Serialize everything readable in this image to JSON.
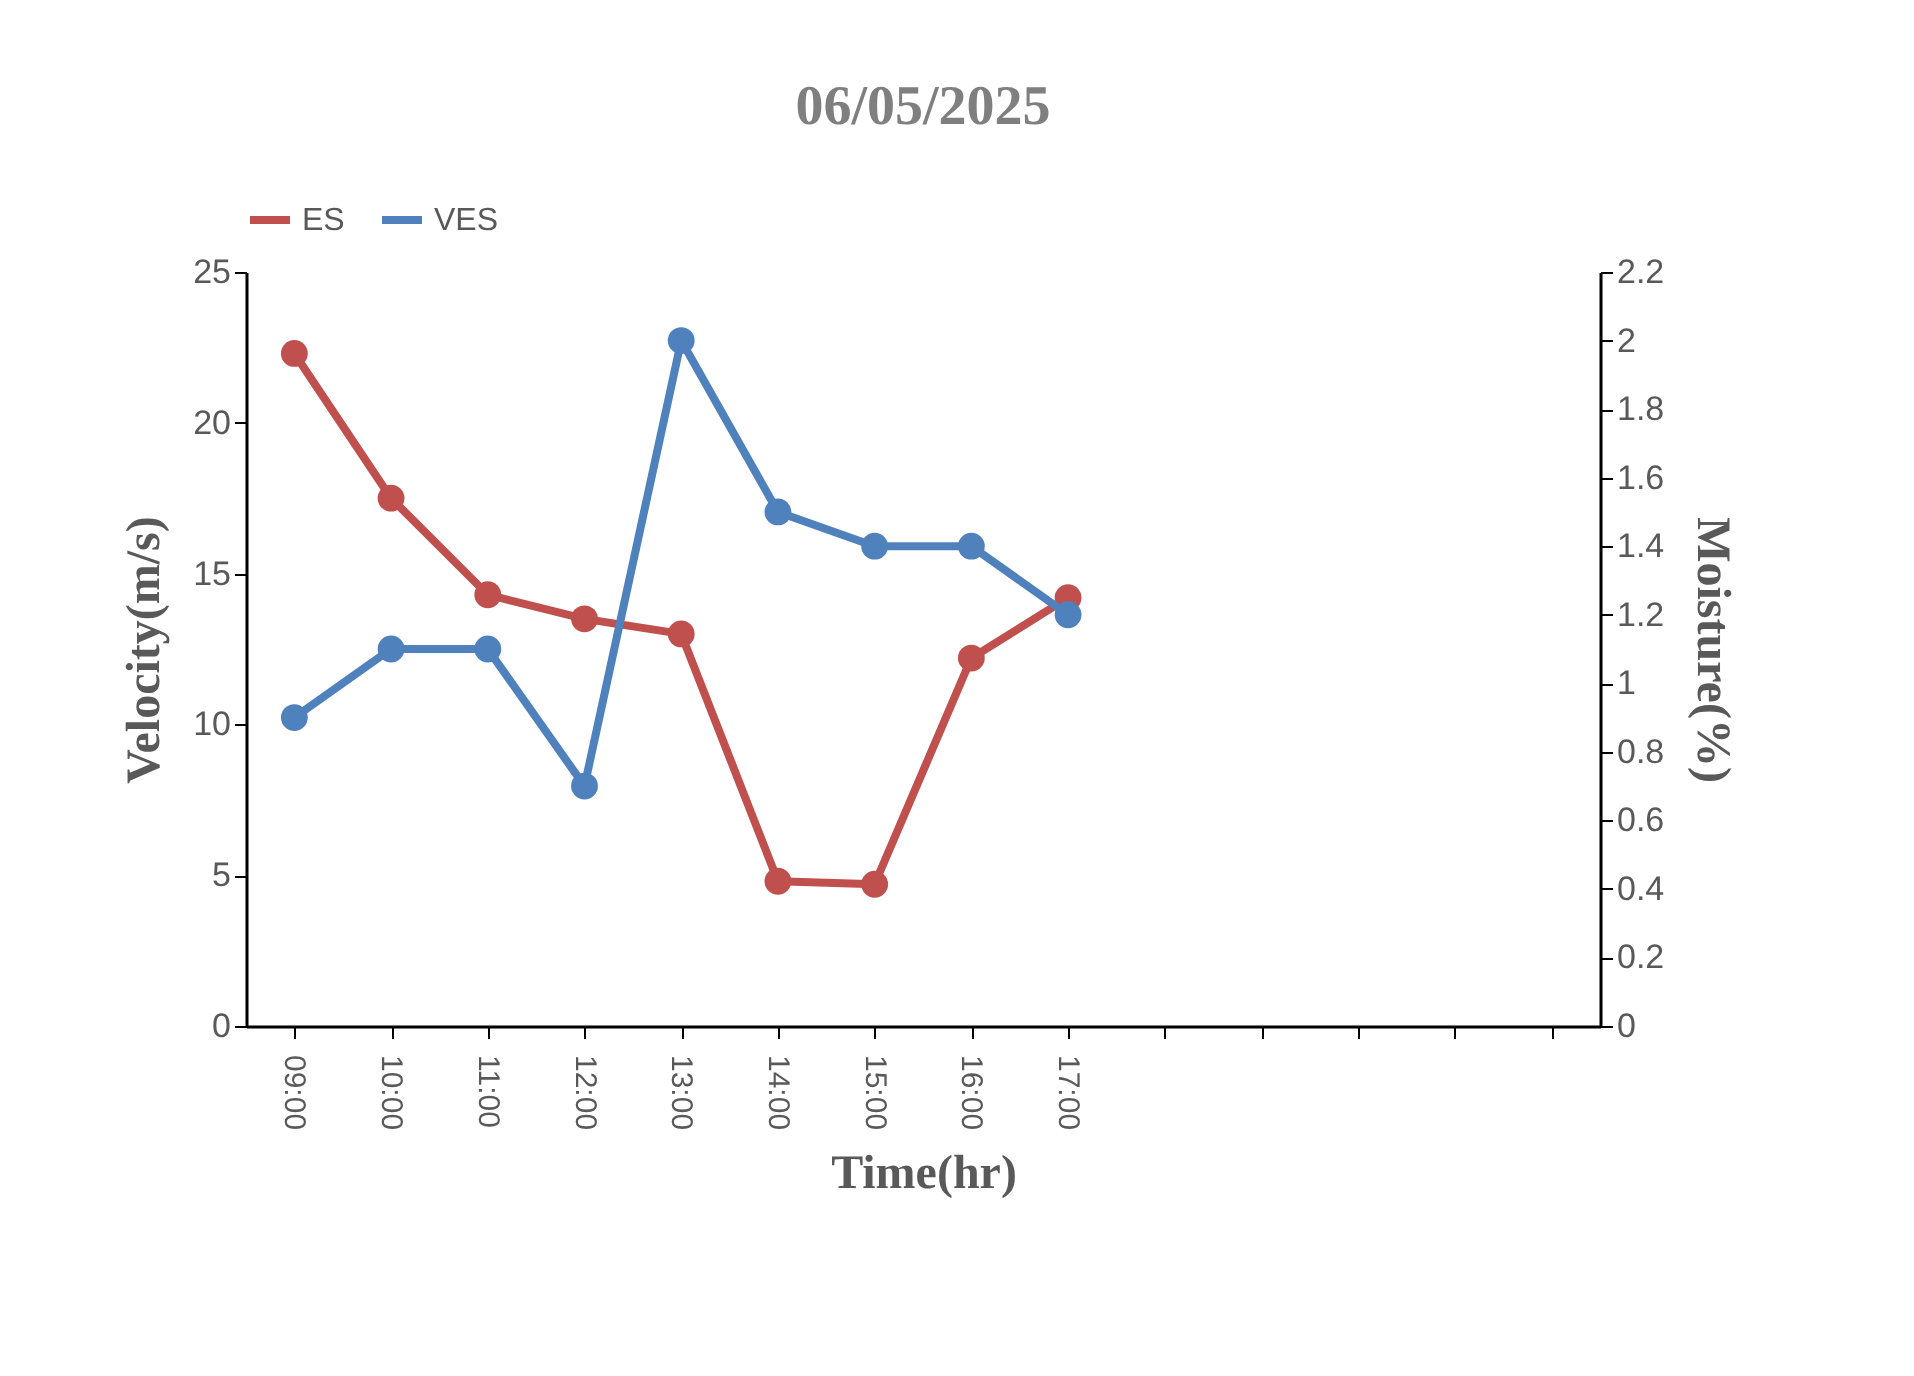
{
  "chart_data": {
    "type": "line",
    "title": "06/05/2025",
    "xlabel": "Time(hr)",
    "ylabel": "Velocity(m/s)",
    "y2label": "Moisture(%)",
    "categories": [
      "09:00",
      "10:00",
      "11:00",
      "12:00",
      "13:00",
      "14:00",
      "15:00",
      "16:00",
      "17:00",
      null,
      null,
      null,
      null,
      null
    ],
    "series": [
      {
        "name": "ES",
        "color": "#c0504d",
        "values": [
          22.3,
          17.5,
          14.3,
          13.5,
          13.0,
          4.8,
          4.7,
          12.2,
          14.2,
          null,
          null,
          null,
          null,
          null
        ]
      },
      {
        "name": "VES",
        "color": "#4f81bd",
        "axis": "y2",
        "values": [
          0.9,
          1.1,
          1.1,
          0.7,
          2.0,
          1.5,
          1.4,
          1.4,
          1.2,
          null,
          null,
          null,
          null,
          null
        ]
      }
    ],
    "ylim": [
      0,
      25
    ],
    "yticks": [
      0,
      5,
      10,
      15,
      20,
      25
    ],
    "y2lim": [
      0,
      2.2
    ],
    "y2ticks": [
      0,
      0.2,
      0.4,
      0.6,
      0.8,
      1,
      1.2,
      1.4,
      1.6,
      1.8,
      2,
      2.2
    ],
    "grid": false,
    "legend": "top",
    "marker": "circle",
    "line_style": "solid"
  }
}
